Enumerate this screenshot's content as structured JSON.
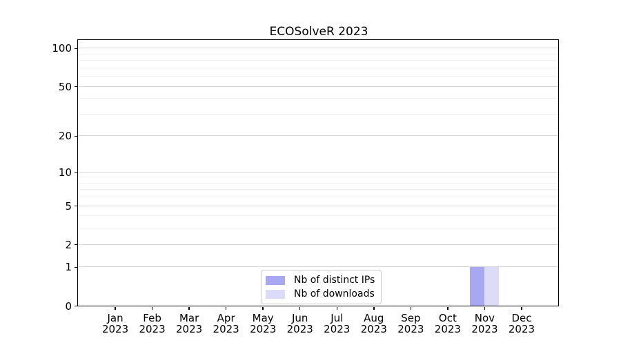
{
  "chart_data": {
    "type": "bar",
    "title": "ECOSolveR 2023",
    "xlabel": "",
    "ylabel": "",
    "y_scale": "log10(1+y)",
    "y_major_ticks": [
      0,
      1,
      2,
      5,
      10,
      20,
      50,
      100
    ],
    "y_minor_gridlines": [
      3,
      4,
      6,
      7,
      8,
      9,
      30,
      40,
      60,
      70,
      80,
      90
    ],
    "ylim": [
      0,
      116
    ],
    "grid": "on",
    "legend_position": "lower center inside plot",
    "x_labels": [
      {
        "line1": "Jan",
        "line2": "2023"
      },
      {
        "line1": "Feb",
        "line2": "2023"
      },
      {
        "line1": "Mar",
        "line2": "2023"
      },
      {
        "line1": "Apr",
        "line2": "2023"
      },
      {
        "line1": "May",
        "line2": "2023"
      },
      {
        "line1": "Jun",
        "line2": "2023"
      },
      {
        "line1": "Jul",
        "line2": "2023"
      },
      {
        "line1": "Aug",
        "line2": "2023"
      },
      {
        "line1": "Sep",
        "line2": "2023"
      },
      {
        "line1": "Oct",
        "line2": "2023"
      },
      {
        "line1": "Nov",
        "line2": "2023"
      },
      {
        "line1": "Dec",
        "line2": "2023"
      }
    ],
    "series": [
      {
        "name": "Nb of distinct IPs",
        "color": "#a8a8f2",
        "values": [
          0,
          0,
          0,
          0,
          0,
          0,
          0,
          0,
          0,
          0,
          1,
          0
        ]
      },
      {
        "name": "Nb of downloads",
        "color": "#dcdcf8",
        "values": [
          0,
          0,
          0,
          0,
          0,
          0,
          0,
          0,
          0,
          0,
          1,
          0
        ]
      }
    ],
    "colors": {
      "major_grid": "#d4d4d4",
      "minor_grid": "#efefef",
      "spine": "#000000",
      "background": "#ffffff"
    }
  }
}
